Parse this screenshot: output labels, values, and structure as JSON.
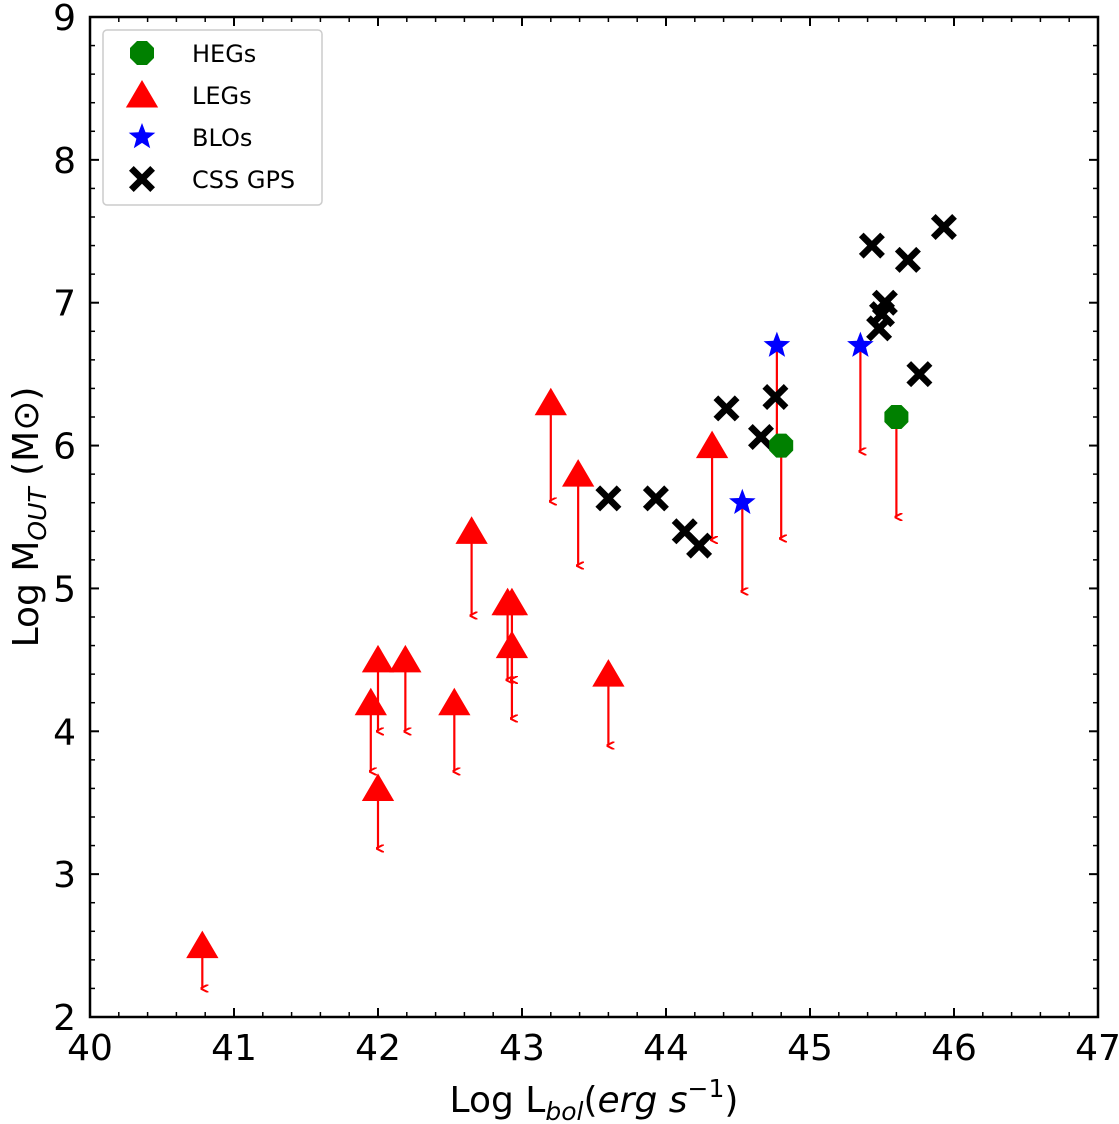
{
  "chart_data": {
    "type": "scatter",
    "title": "",
    "xlabel": {
      "main": "Log L",
      "sub": "bol",
      "unit_open": "(",
      "unit_base": "erg s",
      "unit_sup": "−1",
      "unit_close": ")"
    },
    "ylabel": {
      "main": "Log M",
      "sub": "OUT",
      "unit": "(M⊙)"
    },
    "xlim": [
      40,
      47
    ],
    "ylim": [
      2,
      9
    ],
    "xticks": [
      "40",
      "41",
      "42",
      "43",
      "44",
      "45",
      "46",
      "47"
    ],
    "yticks": [
      "2",
      "3",
      "4",
      "5",
      "6",
      "7",
      "8",
      "9"
    ],
    "legend_position": "top-left",
    "series": [
      {
        "name": "HEGs",
        "marker": "octagon",
        "color": "#008000",
        "upper_limit": true,
        "points": [
          {
            "x": 44.8,
            "y": 6.0,
            "arrow_to": 5.35
          },
          {
            "x": 45.6,
            "y": 6.2,
            "arrow_to": 5.5
          }
        ]
      },
      {
        "name": "LEGs",
        "marker": "triangle",
        "color": "#ff0000",
        "upper_limit": true,
        "points": [
          {
            "x": 40.78,
            "y": 2.5,
            "arrow_to": 2.2
          },
          {
            "x": 41.95,
            "y": 4.2,
            "arrow_to": 3.72
          },
          {
            "x": 42.0,
            "y": 4.5,
            "arrow_to": 4.0
          },
          {
            "x": 42.19,
            "y": 4.5,
            "arrow_to": 4.0
          },
          {
            "x": 42.0,
            "y": 3.6,
            "arrow_to": 3.18
          },
          {
            "x": 42.53,
            "y": 4.2,
            "arrow_to": 3.72
          },
          {
            "x": 42.65,
            "y": 5.4,
            "arrow_to": 4.81
          },
          {
            "x": 42.9,
            "y": 4.9,
            "arrow_to": 4.36
          },
          {
            "x": 42.93,
            "y": 4.9,
            "arrow_to": 4.36
          },
          {
            "x": 42.93,
            "y": 4.6,
            "arrow_to": 4.09
          },
          {
            "x": 43.2,
            "y": 6.3,
            "arrow_to": 5.61
          },
          {
            "x": 43.39,
            "y": 5.8,
            "arrow_to": 5.16
          },
          {
            "x": 43.6,
            "y": 4.4,
            "arrow_to": 3.9
          },
          {
            "x": 44.32,
            "y": 6.0,
            "arrow_to": 5.34
          }
        ]
      },
      {
        "name": "BLOs",
        "marker": "star",
        "color": "#0000ff",
        "upper_limit": true,
        "points": [
          {
            "x": 44.53,
            "y": 5.6,
            "arrow_to": 4.98
          },
          {
            "x": 44.77,
            "y": 6.7,
            "arrow_to": 5.96
          },
          {
            "x": 45.35,
            "y": 6.7,
            "arrow_to": 5.96
          }
        ]
      },
      {
        "name": "CSS GPS",
        "marker": "x",
        "color": "#000000",
        "upper_limit": false,
        "points": [
          {
            "x": 43.6,
            "y": 5.63
          },
          {
            "x": 43.93,
            "y": 5.63
          },
          {
            "x": 44.13,
            "y": 5.4
          },
          {
            "x": 44.23,
            "y": 5.3
          },
          {
            "x": 44.42,
            "y": 6.26
          },
          {
            "x": 44.66,
            "y": 6.06
          },
          {
            "x": 44.76,
            "y": 6.34
          },
          {
            "x": 45.43,
            "y": 7.4
          },
          {
            "x": 45.48,
            "y": 6.82
          },
          {
            "x": 45.5,
            "y": 6.92
          },
          {
            "x": 45.52,
            "y": 7.0
          },
          {
            "x": 45.68,
            "y": 7.3
          },
          {
            "x": 45.76,
            "y": 6.5
          },
          {
            "x": 45.93,
            "y": 7.53
          }
        ]
      }
    ]
  }
}
